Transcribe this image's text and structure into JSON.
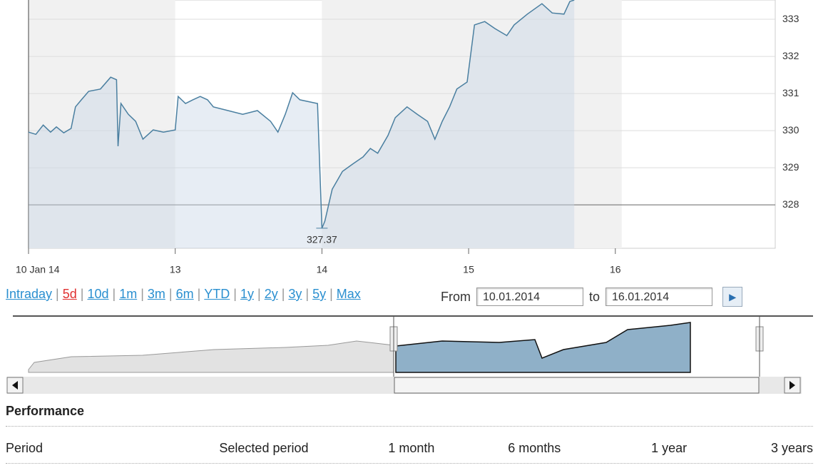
{
  "chart_data": {
    "type": "line",
    "x": [
      0,
      0.05,
      0.1,
      0.15,
      0.19,
      0.24,
      0.29,
      0.32,
      0.36,
      0.41,
      0.49,
      0.56,
      0.6,
      0.61,
      0.63,
      0.68,
      0.73,
      0.78,
      0.85,
      0.92,
      1.0,
      1.02,
      1.07,
      1.12,
      1.17,
      1.22,
      1.26,
      1.36,
      1.46,
      1.56,
      1.65,
      1.7,
      1.75,
      1.8,
      1.85,
      1.97,
      2.0,
      2.02,
      2.07,
      2.14,
      2.21,
      2.28,
      2.33,
      2.38,
      2.45,
      2.5,
      2.58,
      2.65,
      2.72,
      2.77,
      2.82,
      2.87,
      2.92,
      2.99,
      3.04,
      3.11,
      3.18,
      3.26,
      3.31,
      3.4,
      3.5,
      3.57,
      3.65,
      3.69,
      3.72
    ],
    "series": [
      {
        "color": "#4a7fa0",
        "values": [
          329.96,
          329.9,
          330.15,
          329.96,
          330.1,
          329.94,
          330.06,
          330.64,
          330.83,
          331.06,
          331.12,
          331.44,
          331.37,
          329.58,
          330.73,
          330.44,
          330.25,
          329.77,
          330.02,
          329.96,
          330.02,
          330.92,
          330.73,
          330.83,
          330.92,
          330.83,
          330.64,
          330.54,
          330.44,
          330.54,
          330.25,
          329.96,
          330.44,
          331.02,
          330.83,
          330.73,
          327.37,
          327.56,
          328.42,
          328.9,
          329.1,
          329.29,
          329.52,
          329.39,
          329.87,
          330.35,
          330.64,
          330.44,
          330.25,
          329.77,
          330.25,
          330.64,
          331.12,
          331.31,
          332.85,
          332.94,
          332.75,
          332.56,
          332.85,
          333.14,
          333.42,
          333.17,
          333.14,
          333.48,
          333.52
        ]
      }
    ],
    "annotations": [
      "327.37"
    ],
    "xlim": [
      0,
      5.09
    ],
    "xticks": [
      {
        "value": 0,
        "label": "10 Jan 14"
      },
      {
        "value": 1,
        "label": "13"
      },
      {
        "value": 2,
        "label": "14"
      },
      {
        "value": 3,
        "label": "15"
      },
      {
        "value": 4,
        "label": "16"
      }
    ],
    "ylim": [
      326.83,
      333.52
    ],
    "yticks": [
      328,
      329,
      330,
      331,
      332,
      333
    ],
    "grid": true
  },
  "ui": {
    "periods": [
      "Intraday",
      "5d",
      "10d",
      "1m",
      "3m",
      "6m",
      "YTD",
      "1y",
      "2y",
      "3y",
      "5y",
      "Max"
    ],
    "active_period": 1,
    "from_label": "From",
    "from": "10.01.2014",
    "to_label": "to",
    "to": "16.01.2014"
  },
  "performance": {
    "title": "Performance",
    "columns": [
      "Period",
      "Selected period",
      "1 month",
      "6 months",
      "1 year",
      "3 years"
    ]
  }
}
